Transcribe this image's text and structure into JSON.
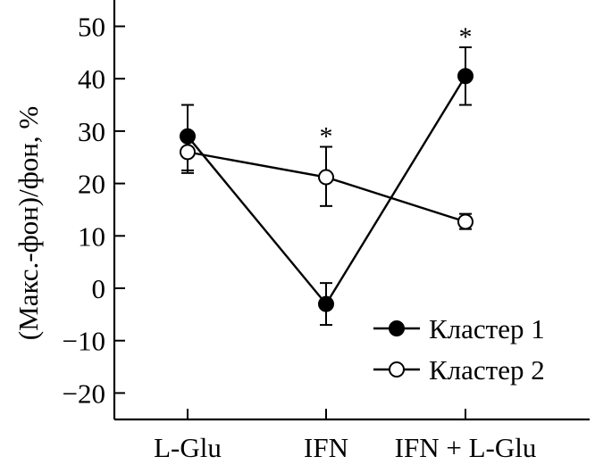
{
  "chart_data": {
    "type": "line",
    "title": "",
    "xlabel": "",
    "ylabel": "(Макс.-фон)/фон, %",
    "categories": [
      "L-Glu",
      "IFN",
      "IFN + L-Glu"
    ],
    "ylim": [
      -25,
      55
    ],
    "yticks": [
      -20,
      -10,
      0,
      10,
      20,
      30,
      40,
      50
    ],
    "ytick_labels": [
      "−20",
      "−10",
      "0",
      "10",
      "20",
      "30",
      "40",
      "50"
    ],
    "grid": false,
    "legend_position": "bottom-right",
    "series": [
      {
        "name": "Кластер 1",
        "marker": "filled-circle",
        "color": "#000000",
        "values": [
          29,
          -3,
          40.5
        ],
        "err_low": [
          22,
          -7,
          35
        ],
        "err_high": [
          35,
          1,
          46
        ]
      },
      {
        "name": "Кластер 2",
        "marker": "open-circle",
        "color": "#000000",
        "values": [
          26,
          21.2,
          12.7
        ],
        "err_low": [
          22.5,
          15.7,
          11.3
        ],
        "err_high": [
          29,
          27,
          14.2
        ]
      }
    ],
    "annotations": [
      {
        "category": "IFN",
        "above_value": 27,
        "text": "*"
      },
      {
        "category": "IFN + L-Glu",
        "above_value": 46,
        "text": "*"
      }
    ]
  }
}
